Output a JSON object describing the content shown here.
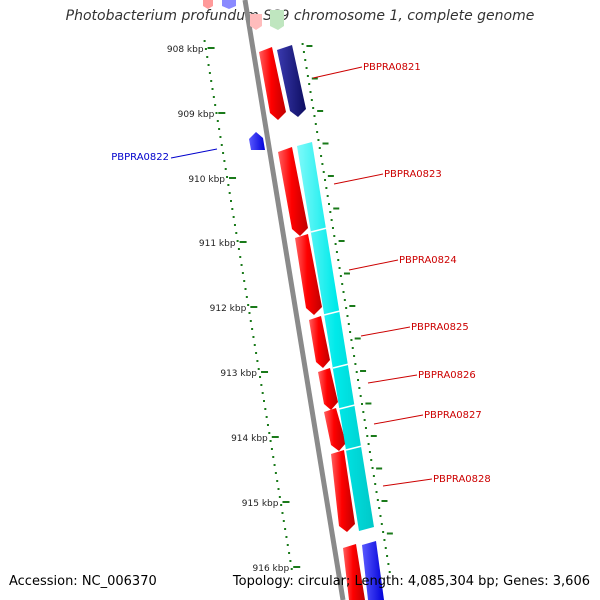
{
  "title": "Photobacterium profundum SS9 chromosome 1, complete genome",
  "footer": {
    "accession": "Accession: NC_006370",
    "topology": "Topology: circular; Length: 4,085,304 bp; Genes: 3,606"
  },
  "colors": {
    "backbone": "#888888",
    "tick": "#1a7a1a",
    "plus_dark_gene": "#1a1a80",
    "forward_gene": "#ff0000",
    "cyan_track": "#00e5e5",
    "blue_gene": "#0000ff",
    "label_red": "#cc0000",
    "label_blue": "#0000cc"
  },
  "scale_labels": [
    "908 kbp",
    "909 kbp",
    "910 kbp",
    "911 kbp",
    "912 kbp",
    "913 kbp",
    "914 kbp",
    "915 kbp",
    "916 kbp"
  ],
  "gene_labels": [
    {
      "name": "PBPRA0821",
      "color": "red"
    },
    {
      "name": "PBPRA0822",
      "color": "blue"
    },
    {
      "name": "PBPRA0823",
      "color": "red"
    },
    {
      "name": "PBPRA0824",
      "color": "red"
    },
    {
      "name": "PBPRA0825",
      "color": "red"
    },
    {
      "name": "PBPRA0826",
      "color": "red"
    },
    {
      "name": "PBPRA0827",
      "color": "red"
    },
    {
      "name": "PBPRA0828",
      "color": "red"
    }
  ]
}
